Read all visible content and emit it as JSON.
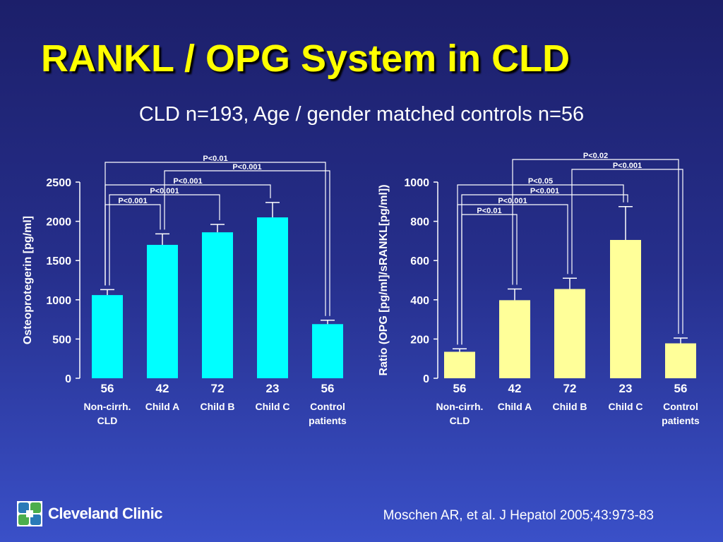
{
  "slide": {
    "title": "RANKL / OPG System in CLD",
    "subtitle": "CLD n=193, Age / gender matched controls n=56",
    "logo_text": "Cleveland Clinic",
    "citation": "Moschen AR, et al. J Hepatol 2005;43:973-83"
  },
  "colors": {
    "background_top": "#1c1f6a",
    "background_bottom": "#3a50c8",
    "title": "#ffff00",
    "bars_left": "#00ffff",
    "bars_right": "#ffff99",
    "text": "#ffffff",
    "logo_green": "#4cae4c",
    "logo_blue": "#2a7ab8"
  },
  "chart_data": [
    {
      "type": "bar",
      "categories": [
        "Non-cirrh. CLD",
        "Child A",
        "Child B",
        "Child C",
        "Control patients"
      ],
      "category_labels": [
        [
          "Non-cirrh.",
          "CLD"
        ],
        [
          "Child A"
        ],
        [
          "Child B"
        ],
        [
          "Child C"
        ],
        [
          "Control",
          "patients"
        ]
      ],
      "n_labels": [
        "56",
        "42",
        "72",
        "23",
        "56"
      ],
      "values": [
        1060,
        1700,
        1860,
        2050,
        690
      ],
      "error_upper": [
        1130,
        1840,
        1960,
        2240,
        740
      ],
      "ylabel": "Osteoprotegerin [pg/ml]",
      "ylim": [
        0,
        2500
      ],
      "yticks": [
        0,
        500,
        1000,
        1500,
        2000,
        2500
      ],
      "bar_color": "#00ffff",
      "comparisons": [
        {
          "from": 0,
          "to": 4,
          "label": "P<0.01"
        },
        {
          "from": 1,
          "to": 4,
          "label": "P<0.001"
        },
        {
          "from": 0,
          "to": 3,
          "label": "P<0.001"
        },
        {
          "from": 0,
          "to": 2,
          "label": "P<0.001"
        },
        {
          "from": 0,
          "to": 1,
          "label": "P<0.001"
        }
      ]
    },
    {
      "type": "bar",
      "categories": [
        "Non-cirrh. CLD",
        "Child A",
        "Child B",
        "Child C",
        "Control patients"
      ],
      "category_labels": [
        [
          "Non-cirrh.",
          "CLD"
        ],
        [
          "Child A"
        ],
        [
          "Child B"
        ],
        [
          "Child C"
        ],
        [
          "Control",
          "patients"
        ]
      ],
      "n_labels": [
        "56",
        "42",
        "72",
        "23",
        "56"
      ],
      "values": [
        135,
        398,
        455,
        705,
        178
      ],
      "error_upper": [
        150,
        455,
        510,
        875,
        205
      ],
      "ylabel": "Ratio (OPG [pg/ml]/sRANKL[pg/ml])",
      "ylim": [
        0,
        1000
      ],
      "yticks": [
        0,
        200,
        400,
        600,
        800,
        1000
      ],
      "bar_color": "#ffff99",
      "comparisons": [
        {
          "from": 1,
          "to": 4,
          "label": "P<0.02"
        },
        {
          "from": 2,
          "to": 4,
          "label": "P<0.001"
        },
        {
          "from": 0,
          "to": 3,
          "label": "P<0.05"
        },
        {
          "from": 0,
          "to": 3,
          "label": "P<0.001"
        },
        {
          "from": 0,
          "to": 2,
          "label": "P<0.001"
        },
        {
          "from": 0,
          "to": 1,
          "label": "P<0.01"
        }
      ]
    }
  ]
}
